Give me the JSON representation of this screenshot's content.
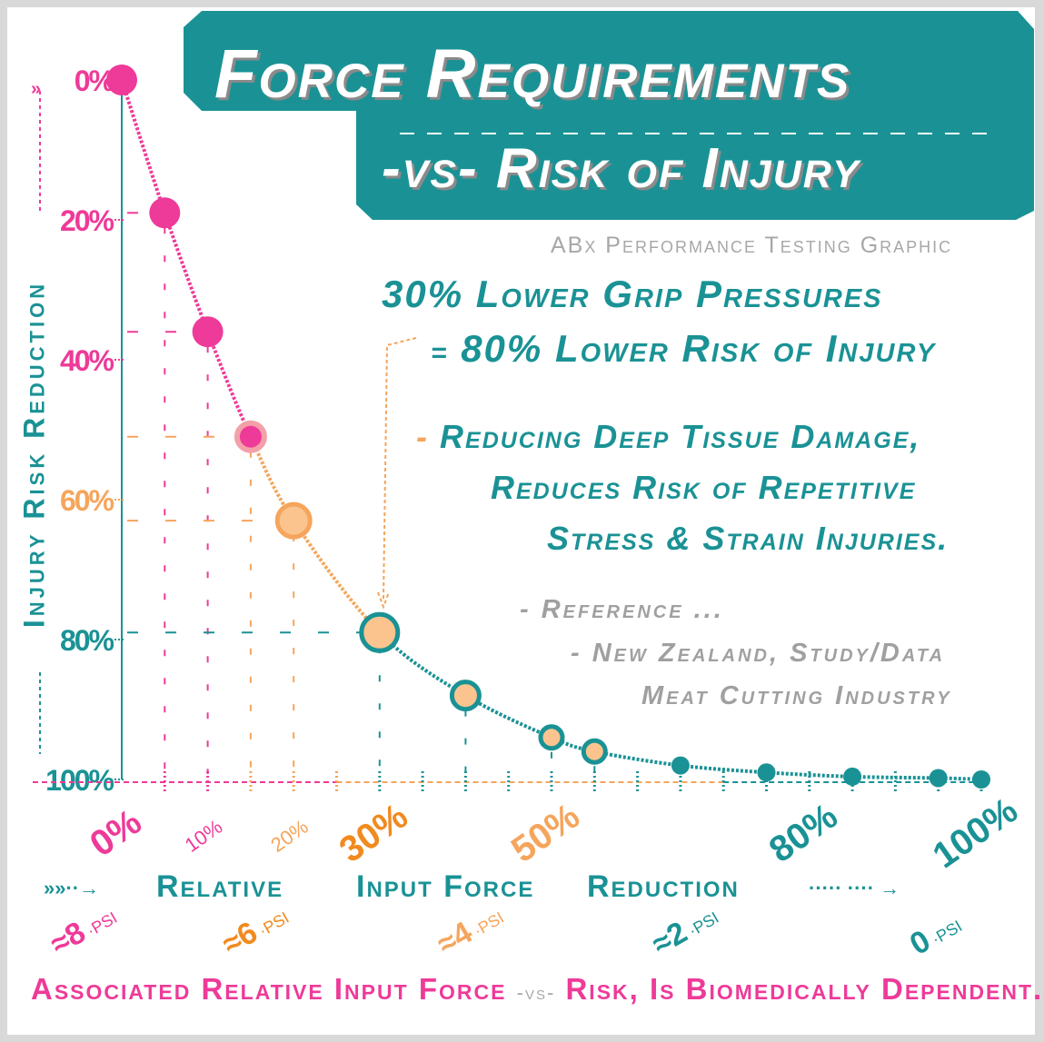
{
  "title_line1": "Force Requirements",
  "title_line2": "-vs- Risk of Injury",
  "subtitle": "ABx Performance Testing Graphic",
  "headline": {
    "part1_number": "30%",
    "part1_text": "Lower Grip Pressures",
    "part2_eq": "=",
    "part2_number": "80%",
    "part2_text": "Lower Risk of Injury"
  },
  "bullets": {
    "dash": "-",
    "line1": "Reducing Deep Tissue Damage,",
    "line2": "Reduces Risk of Repetitive",
    "line3": "Stress & Strain Injuries."
  },
  "reference": {
    "line1": "- Reference ...",
    "line2": "- New Zealand, Study/Data",
    "line3": "Meat Cutting Industry"
  },
  "footer": {
    "part1": "Associated Relative Input Force",
    "vs": "-vs-",
    "part2": "Risk, Is Biomedically Dependent."
  },
  "colors": {
    "teal": "#1a9295",
    "pink": "#ee3a98",
    "orange": "#f5a55c",
    "dark_orange": "#f18a1f",
    "gray": "#a0a0a0"
  },
  "chart_data": {
    "type": "line",
    "xlabel": "Relative Input Force Reduction",
    "ylabel": "Injury Risk Reduction",
    "xlim": [
      0,
      100
    ],
    "ylim": [
      0,
      100
    ],
    "y_inverted": true,
    "x_ticks": [
      {
        "value": 0,
        "label": "0%",
        "color": "#ee3a98",
        "size": "large"
      },
      {
        "value": 10,
        "label": "10%",
        "color": "#ee3a98",
        "size": "small"
      },
      {
        "value": 20,
        "label": "20%",
        "color": "#f5a55c",
        "size": "small"
      },
      {
        "value": 30,
        "label": "30%",
        "color": "#f18a1f",
        "size": "large"
      },
      {
        "value": 50,
        "label": "50%",
        "color": "#f5a55c",
        "size": "large"
      },
      {
        "value": 80,
        "label": "80%",
        "color": "#1a9295",
        "size": "large"
      },
      {
        "value": 100,
        "label": "100%",
        "color": "#1a9295",
        "size": "large"
      }
    ],
    "y_ticks": [
      {
        "value": 0,
        "label": "0%",
        "color": "#ee3a98"
      },
      {
        "value": 20,
        "label": "20%",
        "color": "#ee3a98"
      },
      {
        "value": 40,
        "label": "40%",
        "color": "#ee3a98"
      },
      {
        "value": 60,
        "label": "60%",
        "color": "#f5a55c"
      },
      {
        "value": 80,
        "label": "80%",
        "color": "#1a9295"
      },
      {
        "value": 100,
        "label": "100%",
        "color": "#1a9295"
      }
    ],
    "psi_labels": [
      {
        "x": 0,
        "value": "≈8",
        "unit": "PSI",
        "color": "#ee3a98"
      },
      {
        "x": 20,
        "value": "≈6",
        "unit": "PSI",
        "color": "#f18a1f"
      },
      {
        "x": 45,
        "value": "≈4",
        "unit": "PSI",
        "color": "#f5a55c"
      },
      {
        "x": 70,
        "value": "≈2",
        "unit": "PSI",
        "color": "#1a9295"
      },
      {
        "x": 100,
        "value": "0",
        "unit": "PSI",
        "color": "#1a9295"
      }
    ],
    "x_label_words": [
      "Relative",
      "Input Force",
      "Reduction"
    ],
    "series": [
      {
        "points": [
          {
            "x": 0,
            "y": 0,
            "style": "pink"
          },
          {
            "x": 5,
            "y": 19,
            "style": "pink"
          },
          {
            "x": 10,
            "y": 36,
            "style": "pink"
          },
          {
            "x": 15,
            "y": 51,
            "style": "pink-ring"
          },
          {
            "x": 20,
            "y": 63,
            "style": "orange-ring"
          },
          {
            "x": 30,
            "y": 79,
            "style": "teal-ring"
          },
          {
            "x": 40,
            "y": 88,
            "style": "teal-ring"
          },
          {
            "x": 50,
            "y": 94,
            "style": "teal-ring"
          },
          {
            "x": 55,
            "y": 96,
            "style": "teal-ring"
          },
          {
            "x": 65,
            "y": 98,
            "style": "teal"
          },
          {
            "x": 75,
            "y": 99,
            "style": "teal"
          },
          {
            "x": 85,
            "y": 99.6,
            "style": "teal"
          },
          {
            "x": 95,
            "y": 99.8,
            "style": "teal"
          },
          {
            "x": 100,
            "y": 100,
            "style": "teal"
          }
        ]
      }
    ],
    "grid": false
  }
}
